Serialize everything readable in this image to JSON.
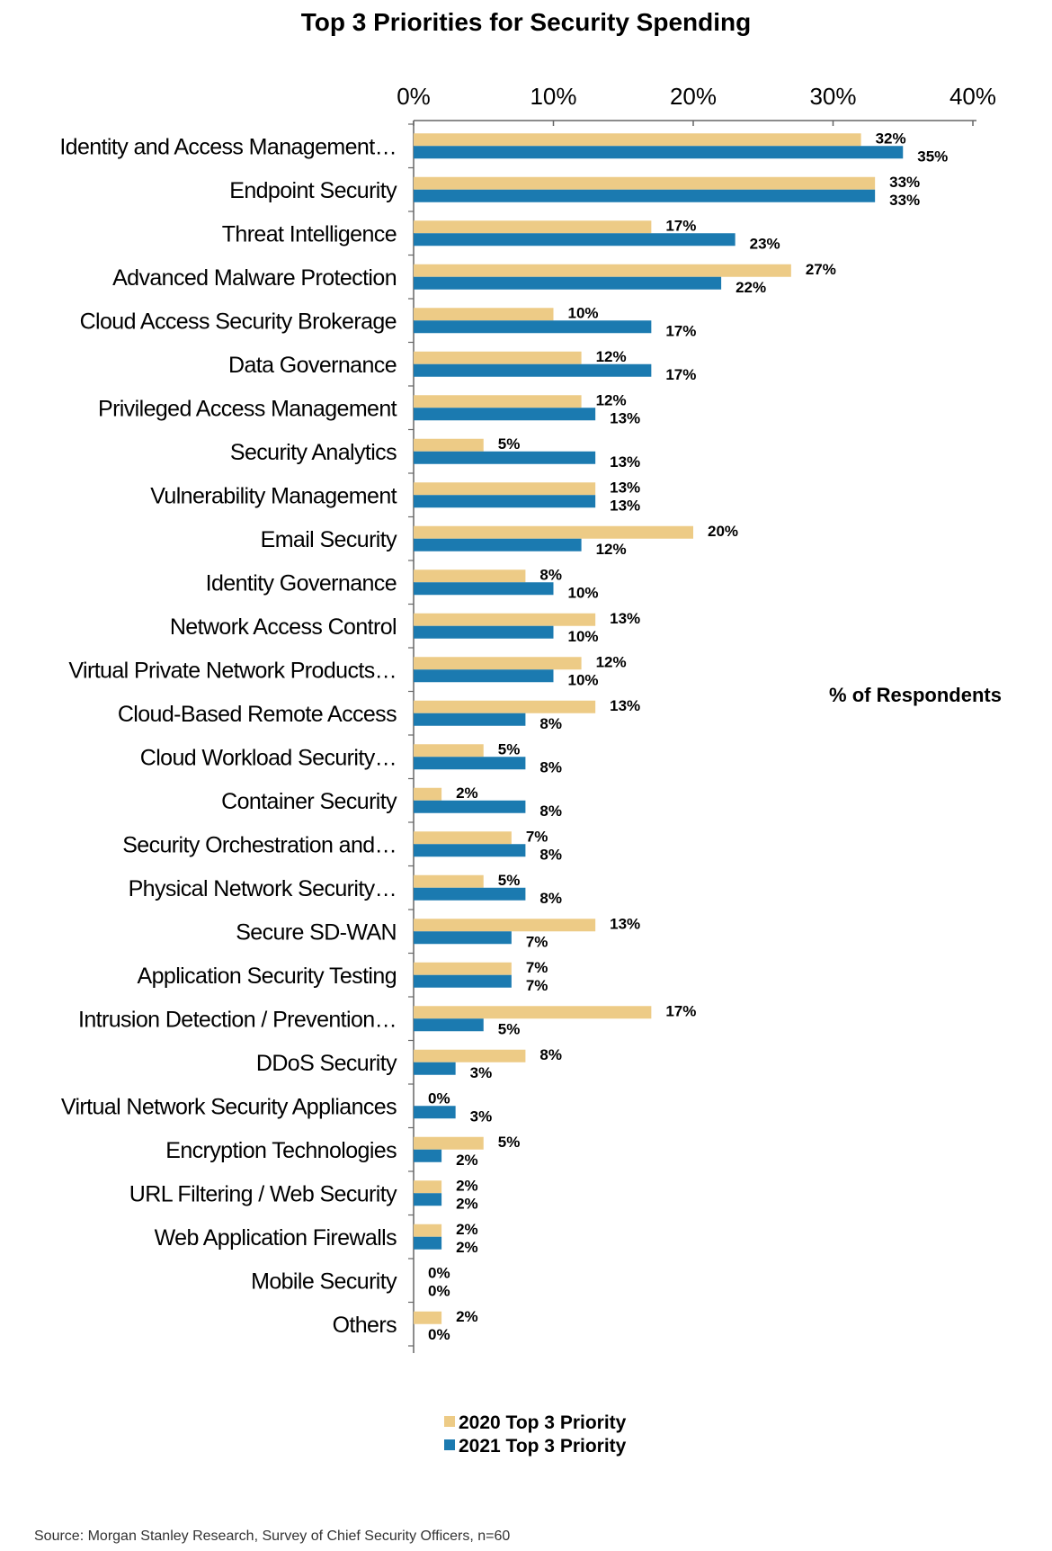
{
  "chart_data": {
    "type": "bar",
    "orientation": "horizontal",
    "title": "Top 3 Priorities for Security Spending",
    "value_axis_title": "% of Respondents",
    "xlim": [
      0,
      40
    ],
    "x_ticks": [
      "0%",
      "10%",
      "20%",
      "30%",
      "40%"
    ],
    "categories": [
      "Identity and Access Management…",
      "Endpoint Security",
      "Threat Intelligence",
      "Advanced Malware Protection",
      "Cloud Access Security Brokerage",
      "Data Governance",
      "Privileged Access Management",
      "Security Analytics",
      "Vulnerability Management",
      "Email Security",
      "Identity Governance",
      "Network Access Control",
      "Virtual Private Network Products…",
      "Cloud-Based Remote Access",
      "Cloud Workload Security…",
      "Container Security",
      "Security Orchestration and…",
      "Physical Network Security…",
      "Secure SD-WAN",
      "Application Security Testing",
      "Intrusion Detection / Prevention…",
      "DDoS Security",
      "Virtual Network Security Appliances",
      "Encryption Technologies",
      "URL Filtering / Web Security",
      "Web Application Firewalls",
      "Mobile Security",
      "Others"
    ],
    "series": [
      {
        "name": "2020 Top 3 Priority",
        "color": "#EDCB86",
        "values": [
          32,
          33,
          17,
          27,
          10,
          12,
          12,
          5,
          13,
          20,
          8,
          13,
          12,
          13,
          5,
          2,
          7,
          5,
          13,
          7,
          17,
          8,
          0,
          5,
          2,
          2,
          0,
          2
        ]
      },
      {
        "name": "2021 Top 3 Priority",
        "color": "#1B7AB0",
        "values": [
          35,
          33,
          23,
          22,
          17,
          17,
          13,
          13,
          13,
          12,
          10,
          10,
          10,
          8,
          8,
          8,
          8,
          8,
          7,
          7,
          5,
          3,
          3,
          2,
          2,
          2,
          0,
          0
        ]
      }
    ],
    "legend_position": "bottom",
    "grid": false
  },
  "source_note": "Source: Morgan Stanley Research, Survey of Chief Security Officers, n=60"
}
